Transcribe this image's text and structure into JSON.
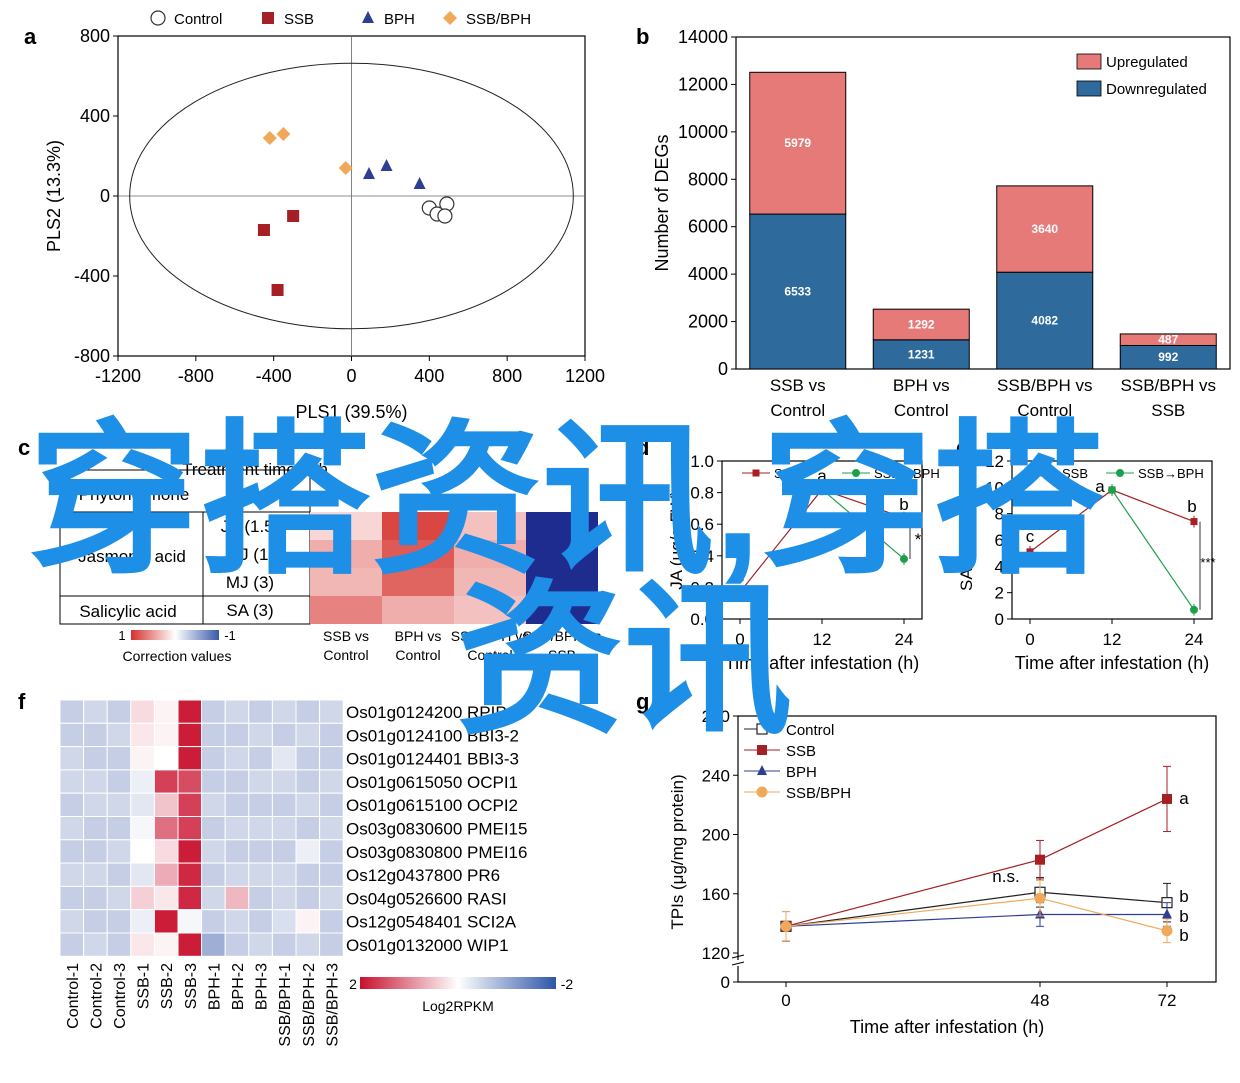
{
  "panel_letters": [
    "a",
    "b",
    "c",
    "d",
    "e",
    "f",
    "g"
  ],
  "watermark": {
    "line1": "穿搭资讯,穿搭",
    "line2": "资讯",
    "color": "#1e8fe6"
  },
  "chart_data": [
    {
      "id": "a",
      "type": "scatter",
      "title": "",
      "xlabel": "PLS1 (39.5%)",
      "ylabel": "PLS2 (13.3%)",
      "xlim": [
        -1200,
        1200
      ],
      "ylim": [
        -800,
        800
      ],
      "xticks": [
        "-1200",
        "-800",
        "-400",
        "0",
        "400",
        "800",
        "1200"
      ],
      "yticks": [
        "800",
        "400",
        "0",
        "-400",
        "-800"
      ],
      "legend_position": "top",
      "series": [
        {
          "name": "Control",
          "marker": "circle-open",
          "color": "#333333",
          "points": [
            [
              400,
              -60
            ],
            [
              490,
              -40
            ],
            [
              440,
              -90
            ],
            [
              480,
              -100
            ]
          ]
        },
        {
          "name": "SSB",
          "marker": "square",
          "color": "#a51f25",
          "points": [
            [
              -450,
              -170
            ],
            [
              -300,
              -100
            ],
            [
              -380,
              -470
            ]
          ]
        },
        {
          "name": "BPH",
          "marker": "triangle",
          "color": "#2e3f93",
          "points": [
            [
              90,
              110
            ],
            [
              180,
              150
            ],
            [
              350,
              60
            ]
          ]
        },
        {
          "name": "SSB/BPH",
          "marker": "diamond",
          "color": "#f0a95a",
          "points": [
            [
              -420,
              290
            ],
            [
              -350,
              310
            ],
            [
              -30,
              140
            ]
          ]
        }
      ]
    },
    {
      "id": "b",
      "type": "bar",
      "stacked": true,
      "title": "",
      "xlabel": "",
      "ylabel": "Number of DEGs",
      "ylim": [
        0,
        14000
      ],
      "yticks": [
        "0",
        "2000",
        "4000",
        "6000",
        "8000",
        "10000",
        "12000",
        "14000"
      ],
      "categories": [
        "SSB vs Control",
        "BPH vs Control",
        "SSB/BPH vs Control",
        "SSB/BPH vs SSB"
      ],
      "series": [
        {
          "name": "Downregulated",
          "color": "#2e6a9c",
          "values": [
            6533,
            1231,
            4082,
            992
          ]
        },
        {
          "name": "Upregulated",
          "color": "#e57a78",
          "values": [
            5979,
            1292,
            3640,
            487
          ]
        }
      ],
      "legend_position": "top-right"
    },
    {
      "id": "c",
      "type": "heatmap",
      "row_header": "Phytohormone",
      "col_header": "Treatment time in h",
      "rows": [
        {
          "group": "Jasmonic acid",
          "label": "JA (1.5)",
          "values": [
            0.2,
            0.9,
            0.3,
            -1
          ]
        },
        {
          "group": "Jasmonic acid",
          "label": "MJ (1)",
          "values": [
            0.4,
            0.8,
            0.4,
            -1
          ]
        },
        {
          "group": "Jasmonic acid",
          "label": "MJ (3)",
          "values": [
            0.35,
            0.75,
            0.35,
            -1
          ]
        },
        {
          "group": "Salicylic acid",
          "label": "SA (3)",
          "values": [
            0.6,
            0.4,
            0.3,
            -1
          ]
        }
      ],
      "columns": [
        "SSB vs Control",
        "BPH vs Control",
        "SSB/BPH vs Control",
        "SSB/BPH vs SSB"
      ],
      "scale_labels": [
        "1",
        "-1"
      ],
      "scale_title": "Correction values"
    },
    {
      "id": "d",
      "type": "line",
      "xlabel": "Time after infestation (h)",
      "ylabel": "JA (μg/g FW)",
      "xlim": [
        0,
        24
      ],
      "ylim": [
        0,
        1.0
      ],
      "xticks": [
        "0",
        "12",
        "24"
      ],
      "yticks": [
        "0.0",
        "0.2",
        "0.4",
        "0.6",
        "0.8",
        "1.0"
      ],
      "series": [
        {
          "name": "SSB",
          "color": "#a51f25",
          "x": [
            0,
            12,
            24
          ],
          "y": [
            0.17,
            0.82,
            0.64
          ]
        },
        {
          "name": "SSB→BPH",
          "color": "#1ea04b",
          "x": [
            12,
            24
          ],
          "y": [
            0.82,
            0.38
          ]
        }
      ],
      "annotations": [
        "c",
        "a",
        "b",
        "*"
      ]
    },
    {
      "id": "e",
      "type": "line",
      "xlabel": "Time after infestation (h)",
      "ylabel": "SA (ng/g FW)",
      "xlim": [
        0,
        24
      ],
      "ylim": [
        0,
        12
      ],
      "xticks": [
        "0",
        "12",
        "24"
      ],
      "yticks": [
        "0",
        "2",
        "4",
        "6",
        "8",
        "10",
        "12"
      ],
      "series": [
        {
          "name": "SSB",
          "color": "#a51f25",
          "x": [
            0,
            12,
            24
          ],
          "y": [
            5.1,
            9.8,
            7.4
          ]
        },
        {
          "name": "SSB→BPH",
          "color": "#1ea04b",
          "x": [
            12,
            24
          ],
          "y": [
            9.8,
            0.7
          ]
        }
      ],
      "annotations": [
        "c",
        "a",
        "b",
        "***"
      ]
    },
    {
      "id": "f",
      "type": "heatmap",
      "columns": [
        "Control-1",
        "Control-2",
        "Control-3",
        "SSB-1",
        "SSB-2",
        "SSB-3",
        "BPH-1",
        "BPH-2",
        "BPH-3",
        "SSB/BPH-1",
        "SSB/BPH-2",
        "SSB/BPH-3"
      ],
      "rows": [
        "Os01g0124200 RPIP4",
        "Os01g0124100 BBI3-2",
        "Os01g0124401 BBI3-3",
        "Os01g0615050 OCPI1",
        "Os01g0615100 OCPI2",
        "Os03g0830600 PMEI15",
        "Os03g0830800 PMEI16",
        "Os12g0437800 PR6",
        "Os04g0526600 RASI",
        "Os12g0548401 SCI2A",
        "Os01g0132000 WIP1"
      ],
      "values": [
        [
          -0.6,
          -0.5,
          -0.6,
          0.3,
          0.1,
          1.9,
          -0.6,
          -0.5,
          -0.6,
          -0.5,
          -0.6,
          -0.5
        ],
        [
          -0.6,
          -0.6,
          -0.5,
          0.2,
          0.1,
          1.9,
          -0.6,
          -0.6,
          -0.5,
          -0.6,
          -0.5,
          -0.6
        ],
        [
          -0.5,
          -0.6,
          -0.6,
          0.1,
          0.0,
          1.9,
          -0.6,
          -0.5,
          -0.6,
          -0.3,
          -0.6,
          -0.6
        ],
        [
          -0.5,
          -0.5,
          -0.6,
          -0.2,
          1.6,
          1.5,
          -0.6,
          -0.6,
          -0.5,
          -0.5,
          -0.6,
          -0.5
        ],
        [
          -0.6,
          -0.5,
          -0.5,
          -0.3,
          0.5,
          1.6,
          -0.5,
          -0.6,
          -0.6,
          -0.6,
          -0.5,
          -0.6
        ],
        [
          -0.5,
          -0.6,
          -0.6,
          -0.1,
          1.2,
          1.6,
          -0.6,
          -0.5,
          -0.5,
          -0.5,
          -0.6,
          -0.5
        ],
        [
          -0.6,
          -0.6,
          -0.5,
          0.0,
          0.3,
          1.9,
          -0.5,
          -0.6,
          -0.6,
          -0.6,
          -0.2,
          -0.6
        ],
        [
          -0.5,
          -0.5,
          -0.6,
          -0.3,
          0.7,
          1.8,
          -0.6,
          -0.5,
          -0.5,
          -0.5,
          -0.6,
          -0.6
        ],
        [
          -0.6,
          -0.6,
          -0.5,
          0.4,
          0.2,
          1.8,
          -0.5,
          0.6,
          -0.6,
          -0.5,
          -0.6,
          -0.5
        ],
        [
          -0.5,
          -0.6,
          -0.6,
          -0.2,
          1.9,
          -0.1,
          -0.6,
          -0.5,
          -0.6,
          -0.4,
          0.1,
          -0.6
        ],
        [
          -0.6,
          -0.5,
          -0.6,
          0.2,
          0.1,
          1.9,
          -1.0,
          -0.6,
          -0.5,
          -0.6,
          -0.5,
          -0.6
        ]
      ],
      "scale_labels": [
        "2",
        "-2"
      ],
      "scale_title": "Log2RPKM"
    },
    {
      "id": "g",
      "type": "line",
      "xlabel": "Time after infestation (h)",
      "ylabel": "TPIs (μg/mg protein)",
      "xlim": [
        0,
        72
      ],
      "ylim": [
        120,
        280
      ],
      "xticks": [
        "0",
        "48",
        "72"
      ],
      "yticks": [
        "0",
        "120",
        "160",
        "200",
        "240",
        "280"
      ],
      "axis_break": true,
      "series": [
        {
          "name": "Control",
          "color": "#222222",
          "marker": "square-open",
          "x": [
            0,
            48,
            72
          ],
          "y": [
            138,
            161,
            154
          ],
          "err": [
            10,
            10,
            13
          ]
        },
        {
          "name": "SSB",
          "color": "#a51f25",
          "marker": "square",
          "x": [
            0,
            48,
            72
          ],
          "y": [
            138,
            183,
            224
          ],
          "err": [
            10,
            13,
            22
          ]
        },
        {
          "name": "BPH",
          "color": "#2e3f93",
          "marker": "triangle",
          "x": [
            0,
            48,
            72
          ],
          "y": [
            138,
            146,
            146
          ],
          "err": [
            10,
            8,
            8
          ]
        },
        {
          "name": "SSB/BPH",
          "color": "#f0a95a",
          "marker": "circle",
          "x": [
            0,
            48,
            72
          ],
          "y": [
            138,
            157,
            135
          ],
          "err": [
            10,
            12,
            8
          ]
        }
      ],
      "annotations": [
        "n.s.",
        "a",
        "b",
        "b",
        "b"
      ]
    }
  ]
}
